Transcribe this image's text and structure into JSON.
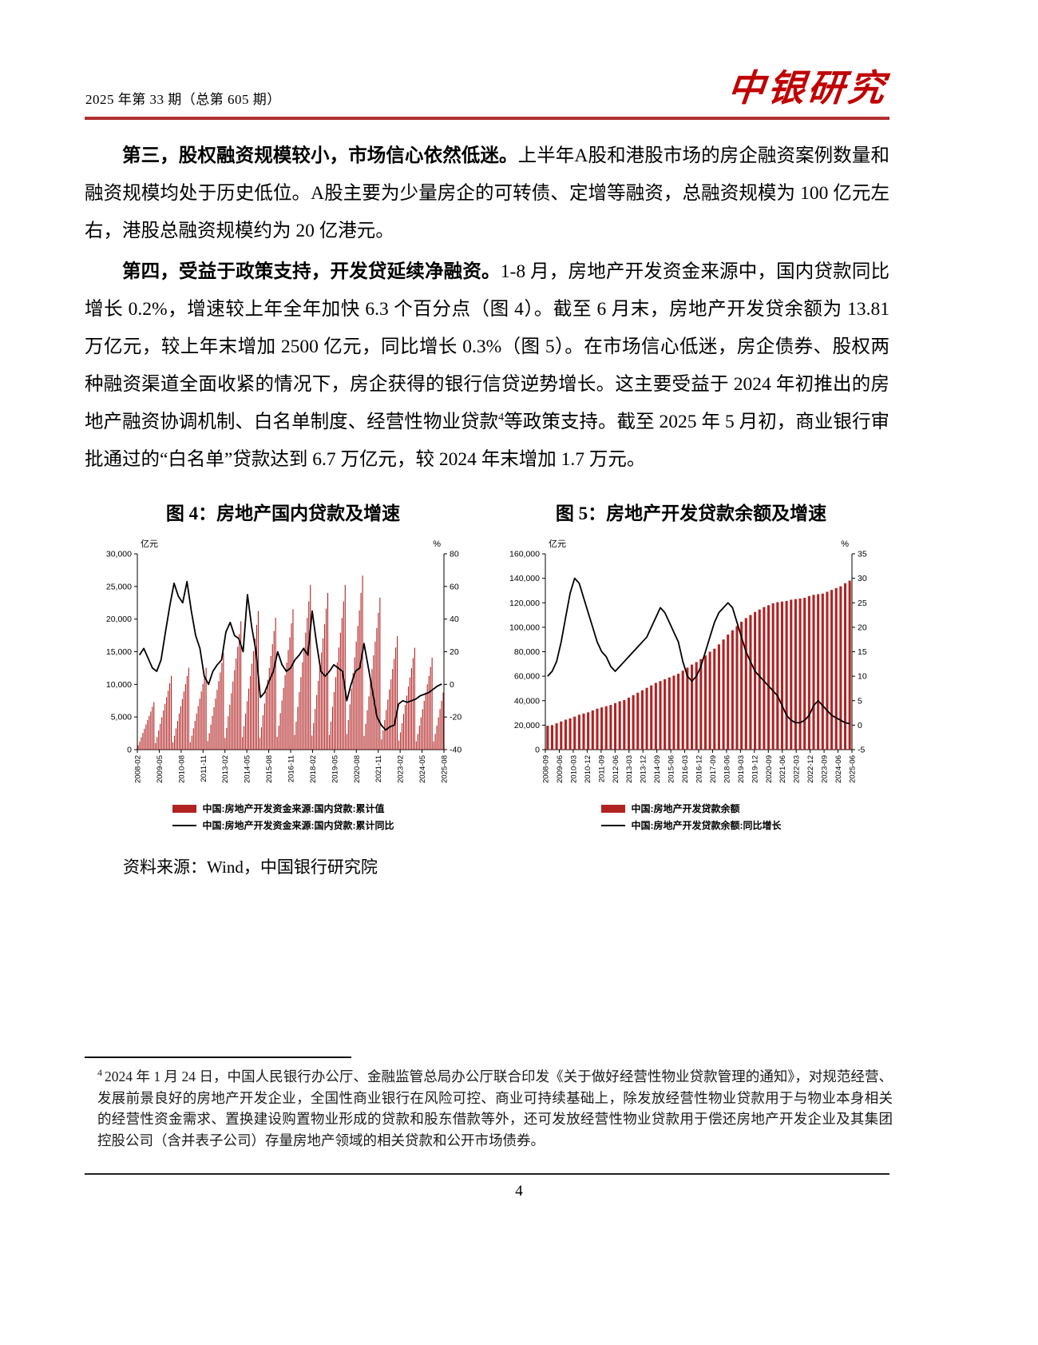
{
  "header": {
    "issue": "2025 年第 33 期（总第 605 期）",
    "logo": "中银研究",
    "rule_color": "#b03030"
  },
  "paragraphs": [
    {
      "lead": "第三，股权融资规模较小，市场信心依然低迷。",
      "body": "上半年A股和港股市场的房企融资案例数量和融资规模均处于历史低位。A股主要为少量房企的可转债、定增等融资，总融资规模为 100 亿元左右，港股总融资规模约为 20 亿港元。"
    },
    {
      "lead": "第四，受益于政策支持，开发贷延续净融资。",
      "body1": "1-8 月，房地产开发资金来源中，国内贷款同比增长 0.2%，增速较上年全年加快 6.3 个百分点（图 4）。截至 6 月末，房地产开发贷余额为 13.81 万亿元，较上年末增加 2500 亿元，同比增长 0.3%（图 5）。在市场信心低迷，房企债券、股权两种融资渠道全面收紧的情况下，房企获得的银行信贷逆势增长。这主要受益于 2024 年初推出的房地产融资协调机制、白名单制度、经营性物业贷款",
      "footnote_ref": "4",
      "body2": "等政策支持。截至 2025 年 5 月初，商业银行审批通过的“白名单”贷款达到 6.7 万亿元，较 2024 年末增加 1.7 万元。"
    }
  ],
  "chart_data": [
    {
      "type": "bar",
      "title": "图 4：房地产国内贷款及增速",
      "unit_left": "亿元",
      "unit_right": "%",
      "legend_position": "bottom",
      "grid": false,
      "left_axis": {
        "min": 0,
        "max": 30000,
        "ticks": [
          "30,000",
          "25,000",
          "20,000",
          "15,000",
          "10,000",
          "5,000",
          "0"
        ]
      },
      "right_axis": {
        "min": -40,
        "max": 80,
        "ticks": [
          "80",
          "60",
          "40",
          "20",
          "0",
          "-20",
          "-40"
        ]
      },
      "x_tick_labels": [
        "2008-02",
        "2009-05",
        "2010-08",
        "2011-11",
        "2013-02",
        "2014-05",
        "2015-08",
        "2016-11",
        "2018-02",
        "2019-05",
        "2020-08",
        "2021-11",
        "2023-02",
        "2024-05",
        "2025-08"
      ],
      "bar_series": {
        "name": "中国:房地产开发资金来源:国内贷款:累计值",
        "color": "#b22222",
        "values": [
          660,
          1240,
          1900,
          2560,
          3210,
          3870,
          4530,
          5180,
          5840,
          6570,
          7300,
          1020,
          1920,
          2940,
          3960,
          4970,
          5990,
          7010,
          8020,
          9040,
          10170,
          11300,
          1130,
          2130,
          3260,
          4390,
          5520,
          6650,
          7770,
          8900,
          10030,
          11290,
          12540,
          1130,
          2140,
          3270,
          4400,
          5530,
          6660,
          7790,
          8920,
          10050,
          11300,
          12560,
          1330,
          2510,
          3840,
          5170,
          6500,
          7830,
          9160,
          10490,
          11820,
          13300,
          14780,
          1770,
          3340,
          5110,
          6880,
          8650,
          10430,
          12200,
          13970,
          15740,
          17700,
          19670,
          1910,
          3610,
          5520,
          7430,
          9350,
          11260,
          13170,
          15080,
          16990,
          19120,
          21240,
          1820,
          3430,
          5250,
          7070,
          8890,
          10710,
          12520,
          14340,
          16160,
          18180,
          20200,
          1940,
          3660,
          5590,
          7530,
          9460,
          11400,
          13340,
          15270,
          17210,
          19360,
          21510,
          2270,
          4290,
          6560,
          8830,
          11110,
          13380,
          15650,
          17920,
          20190,
          22720,
          25240,
          2160,
          4080,
          6240,
          8400,
          10560,
          12730,
          14890,
          17050,
          19210,
          21610,
          24010,
          2270,
          4290,
          6560,
          8830,
          11100,
          13370,
          15640,
          17910,
          20180,
          22710,
          25230,
          2400,
          4540,
          6940,
          9340,
          11740,
          14140,
          16540,
          18940,
          21340,
          24010,
          26680,
          2100,
          3960,
          6060,
          8160,
          10250,
          12350,
          14450,
          16540,
          18640,
          20970,
          23300,
          1570,
          2960,
          4520,
          6090,
          7650,
          9220,
          10780,
          12350,
          13910,
          15650,
          17390,
          1400,
          2650,
          4060,
          5460,
          6860,
          8270,
          9670,
          11080,
          12480,
          14040,
          15600,
          1270,
          2400,
          3670,
          4940,
          6200,
          7470,
          8740,
          10010,
          11280,
          12690,
          14100,
          1270,
          2400,
          3670,
          4950,
          6220,
          7490,
          8760
        ]
      },
      "line_series": {
        "name": "中国:房地产开发资金来源:国内贷款:累计同比",
        "color": "#000000",
        "values": [
          18,
          22,
          16,
          10,
          8,
          15,
          32,
          48,
          62,
          54,
          50,
          63,
          45,
          30,
          22,
          5,
          0,
          8,
          12,
          15,
          32,
          38,
          30,
          28,
          20,
          55,
          35,
          20,
          -8,
          -5,
          2,
          8,
          20,
          12,
          8,
          10,
          15,
          18,
          22,
          18,
          45,
          25,
          8,
          5,
          8,
          12,
          10,
          8,
          -10,
          0,
          8,
          10,
          25,
          10,
          -5,
          -20,
          -25,
          -28,
          -26,
          -25,
          -12,
          -10,
          -11,
          -10,
          -9,
          -7,
          -6,
          -5,
          -3,
          -1,
          0.2
        ]
      }
    },
    {
      "type": "bar",
      "title": "图 5：房地产开发贷款余额及增速",
      "unit_left": "亿元",
      "unit_right": "%",
      "legend_position": "bottom",
      "grid": false,
      "left_axis": {
        "min": 0,
        "max": 160000,
        "ticks": [
          "160,000",
          "140,000",
          "120,000",
          "100,000",
          "80,000",
          "60,000",
          "40,000",
          "20,000",
          "0"
        ]
      },
      "right_axis": {
        "min": -5,
        "max": 35,
        "ticks": [
          "35",
          "30",
          "25",
          "20",
          "15",
          "10",
          "5",
          "0",
          "-5"
        ]
      },
      "x_tick_labels": [
        "2008-09",
        "2009-06",
        "2010-03",
        "2010-12",
        "2011-09",
        "2012-06",
        "2013-03",
        "2013-12",
        "2014-09",
        "2015-06",
        "2016-03",
        "2016-12",
        "2017-09",
        "2018-06",
        "2019-03",
        "2019-12",
        "2020-09",
        "2021-06",
        "2022-03",
        "2022-12",
        "2023-09",
        "2024-06",
        "2025-06"
      ],
      "bar_series": {
        "name": "中国:房地产开发贷款余额",
        "color": "#b22222",
        "values": [
          19500,
          20000,
          21500,
          23000,
          24500,
          25500,
          27000,
          28500,
          29500,
          30500,
          32000,
          33500,
          34500,
          35500,
          36500,
          38000,
          39500,
          40500,
          42500,
          44500,
          46500,
          48500,
          50500,
          52500,
          54500,
          56000,
          57500,
          59000,
          60500,
          62000,
          64500,
          67000,
          69500,
          71500,
          74000,
          77000,
          80000,
          82500,
          86000,
          90000,
          94000,
          97500,
          101000,
          104500,
          107500,
          110000,
          112500,
          114500,
          116500,
          118000,
          119500,
          120500,
          121000,
          121500,
          122500,
          123000,
          123500,
          124000,
          125500,
          126500,
          127000,
          127500,
          129000,
          130500,
          132000,
          133500,
          136000,
          138100
        ]
      },
      "line_series": {
        "name": "中国:房地产开发贷款余额:同比增长",
        "color": "#000000",
        "values": [
          10,
          11,
          13,
          17,
          22,
          27,
          30,
          29,
          26,
          23,
          20,
          17,
          15,
          14,
          12,
          11,
          12,
          13,
          14,
          15,
          16,
          17,
          18,
          20,
          22,
          24,
          23,
          21,
          19,
          17,
          13,
          10,
          9,
          10,
          12,
          15,
          18,
          21,
          23,
          24,
          25,
          24,
          21,
          18,
          15,
          13,
          11,
          10,
          9,
          8,
          7,
          6,
          4,
          2,
          1,
          0.5,
          0.5,
          1,
          2,
          4,
          5,
          4,
          3,
          2,
          1.5,
          1,
          0.5,
          0.3
        ]
      }
    }
  ],
  "source_note": "资料来源：Wind，中国银行研究院",
  "footnote": {
    "ref": "4",
    "text": "2024 年 1 月 24 日，中国人民银行办公厅、金融监管总局办公厅联合印发《关于做好经营性物业贷款管理的通知》，对规范经营、发展前景良好的房地产开发企业，全国性商业银行在风险可控、商业可持续基础上，除发放经营性物业贷款用于与物业本身相关的经营性资金需求、置换建设购置物业形成的贷款和股东借款等外，还可发放经营性物业贷款用于偿还房地产开发企业及其集团控股公司（含并表子公司）存量房地产领域的相关贷款和公开市场债券。"
  },
  "page_number": "4"
}
